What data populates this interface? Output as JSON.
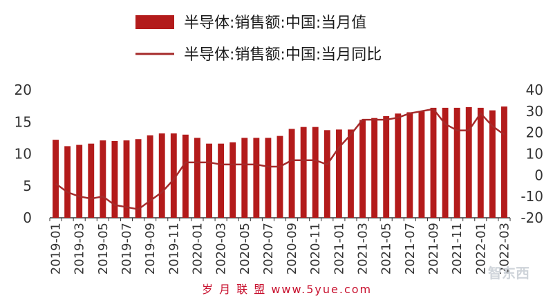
{
  "legend": {
    "bar_label": "半导体:销售额:中国:当月值",
    "line_label": "半导体:销售额:中国:当月同比"
  },
  "colors": {
    "bar": "#b31b1b",
    "line": "#a52a2a",
    "axis": "#333333"
  },
  "watermark": {
    "text": "岁 月 联 盟   www.5yue.com",
    "logo": "智东西"
  },
  "chart_data": {
    "type": "bar",
    "title": "",
    "xlabel": "",
    "ylabel": "",
    "ylim": [
      0,
      20
    ],
    "y2lim": [
      -20,
      40
    ],
    "y_ticks": [
      "0",
      "5",
      "10",
      "15",
      "20"
    ],
    "y2_ticks": [
      "-20",
      "-10",
      "0",
      "10",
      "20",
      "30",
      "40"
    ],
    "x_tick_labels": [
      "2019-01",
      "2019-03",
      "2019-05",
      "2019-07",
      "2019-09",
      "2019-11",
      "2020-01",
      "2020-03",
      "2020-05",
      "2020-07",
      "2020-09",
      "2020-11",
      "2021-01",
      "2021-03",
      "2021-05",
      "2021-07",
      "2021-09",
      "2021-11",
      "2022-01",
      "2022-03"
    ],
    "categories": [
      "2019-01",
      "2019-02",
      "2019-03",
      "2019-04",
      "2019-05",
      "2019-06",
      "2019-07",
      "2019-08",
      "2019-09",
      "2019-10",
      "2019-11",
      "2019-12",
      "2020-01",
      "2020-02",
      "2020-03",
      "2020-04",
      "2020-05",
      "2020-06",
      "2020-07",
      "2020-08",
      "2020-09",
      "2020-10",
      "2020-11",
      "2020-12",
      "2021-01",
      "2021-02",
      "2021-03",
      "2021-04",
      "2021-05",
      "2021-06",
      "2021-07",
      "2021-08",
      "2021-09",
      "2021-10",
      "2021-11",
      "2021-12",
      "2022-01",
      "2022-02",
      "2022-03"
    ],
    "series": [
      {
        "name": "半导体:销售额:中国:当月值",
        "type": "bar",
        "axis": "left",
        "values": [
          12.2,
          11.2,
          11.4,
          11.6,
          12.1,
          12.0,
          12.1,
          12.3,
          12.9,
          13.2,
          13.2,
          13.0,
          12.5,
          11.6,
          11.6,
          11.8,
          12.5,
          12.5,
          12.5,
          12.8,
          13.9,
          14.2,
          14.2,
          13.7,
          13.8,
          13.8,
          15.3,
          15.6,
          15.9,
          16.3,
          16.5,
          16.6,
          17.2,
          17.2,
          17.2,
          17.3,
          17.2,
          16.8,
          17.4
        ]
      },
      {
        "name": "半导体:销售额:中国:当月同比",
        "type": "line",
        "axis": "right",
        "values": [
          -4,
          -8,
          -10,
          -11,
          -10,
          -14,
          -15,
          -16,
          -12,
          -8,
          -2,
          6,
          6,
          6,
          5,
          5,
          5,
          5,
          4,
          4,
          7,
          7,
          7,
          5,
          13,
          19,
          26,
          26,
          26,
          27,
          29,
          30,
          31,
          24,
          21,
          21,
          29,
          23,
          19
        ]
      }
    ],
    "legend_position": "top",
    "grid": false
  }
}
